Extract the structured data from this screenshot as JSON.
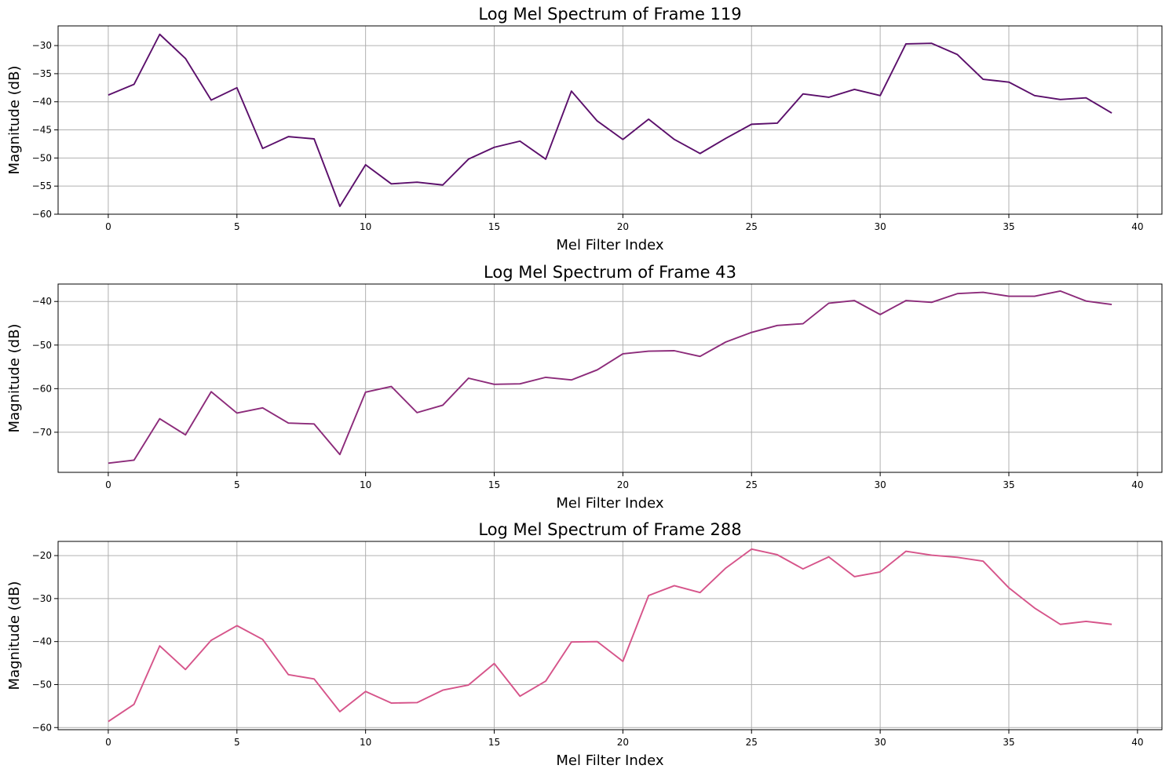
{
  "chart_data": [
    {
      "type": "line",
      "title": "Log Mel Spectrum of Frame 119",
      "xlabel": "Mel Filter Index",
      "ylabel": "Magnitude (dB)",
      "xlim": [
        -1.95,
        40.95
      ],
      "ylim": [
        -60,
        -26.5
      ],
      "xticks": [
        0,
        5,
        10,
        15,
        20,
        25,
        30,
        35,
        40
      ],
      "yticks": [
        -60,
        -55,
        -50,
        -45,
        -40,
        -35,
        -30
      ],
      "grid": true,
      "color": "#5b0f6b",
      "series": [
        {
          "x": [
            0,
            1,
            2,
            3,
            4,
            5,
            6,
            7,
            8,
            9,
            10,
            11,
            12,
            13,
            14,
            15,
            16,
            17,
            18,
            19,
            20,
            21,
            22,
            23,
            24,
            25,
            26,
            27,
            28,
            29,
            30,
            31,
            32,
            33,
            34,
            35,
            36,
            37,
            38,
            39
          ],
          "values": [
            -38.8,
            -36.9,
            -28.0,
            -32.3,
            -39.7,
            -37.5,
            -48.3,
            -46.2,
            -46.6,
            -58.6,
            -51.2,
            -54.6,
            -54.3,
            -54.8,
            -50.2,
            -48.1,
            -47.0,
            -50.2,
            -38.1,
            -43.4,
            -46.7,
            -43.1,
            -46.7,
            -49.2,
            -46.5,
            -44.0,
            -43.8,
            -38.6,
            -39.2,
            -37.8,
            -38.9,
            -29.7,
            -29.6,
            -31.6,
            -36.0,
            -36.5,
            -38.9,
            -39.6,
            -39.3,
            -42.0
          ]
        }
      ]
    },
    {
      "type": "line",
      "title": "Log Mel Spectrum of Frame 43",
      "xlabel": "Mel Filter Index",
      "ylabel": "Magnitude (dB)",
      "xlim": [
        -1.95,
        40.95
      ],
      "ylim": [
        -79.2,
        -36.0
      ],
      "xticks": [
        0,
        5,
        10,
        15,
        20,
        25,
        30,
        35,
        40
      ],
      "yticks": [
        -70,
        -60,
        -50,
        -40
      ],
      "grid": true,
      "color": "#8c2b7a",
      "series": [
        {
          "x": [
            0,
            1,
            2,
            3,
            4,
            5,
            6,
            7,
            8,
            9,
            10,
            11,
            12,
            13,
            14,
            15,
            16,
            17,
            18,
            19,
            20,
            21,
            22,
            23,
            24,
            25,
            26,
            27,
            28,
            29,
            30,
            31,
            32,
            33,
            34,
            35,
            36,
            37,
            38,
            39
          ],
          "values": [
            -77.1,
            -76.4,
            -66.9,
            -70.6,
            -60.7,
            -65.6,
            -64.4,
            -67.9,
            -68.1,
            -75.1,
            -60.8,
            -59.5,
            -65.5,
            -63.8,
            -57.6,
            -59.0,
            -58.9,
            -57.4,
            -58.0,
            -55.7,
            -52.0,
            -51.4,
            -51.3,
            -52.6,
            -49.3,
            -47.1,
            -45.5,
            -45.1,
            -40.4,
            -39.8,
            -43.0,
            -39.8,
            -40.2,
            -38.2,
            -37.9,
            -38.8,
            -38.8,
            -37.6,
            -39.9,
            -40.7
          ]
        }
      ]
    },
    {
      "type": "line",
      "title": "Log Mel Spectrum of Frame 288",
      "xlabel": "Mel Filter Index",
      "ylabel": "Magnitude (dB)",
      "xlim": [
        -1.95,
        40.95
      ],
      "ylim": [
        -60.5,
        -16.7
      ],
      "xticks": [
        0,
        5,
        10,
        15,
        20,
        25,
        30,
        35,
        40
      ],
      "yticks": [
        -60,
        -50,
        -40,
        -30,
        -20
      ],
      "grid": true,
      "color": "#d6548a",
      "series": [
        {
          "x": [
            0,
            1,
            2,
            3,
            4,
            5,
            6,
            7,
            8,
            9,
            10,
            11,
            12,
            13,
            14,
            15,
            16,
            17,
            18,
            19,
            20,
            21,
            22,
            23,
            24,
            25,
            26,
            27,
            28,
            29,
            30,
            31,
            32,
            33,
            34,
            35,
            36,
            37,
            38,
            39
          ],
          "values": [
            -58.6,
            -54.6,
            -41.0,
            -46.5,
            -39.7,
            -36.3,
            -39.5,
            -47.7,
            -48.7,
            -56.3,
            -51.6,
            -54.3,
            -54.2,
            -51.3,
            -50.1,
            -45.1,
            -52.7,
            -49.2,
            -40.1,
            -40.0,
            -44.6,
            -29.3,
            -27.0,
            -28.6,
            -22.9,
            -18.5,
            -19.8,
            -23.1,
            -20.3,
            -24.9,
            -23.8,
            -19.0,
            -19.9,
            -20.4,
            -21.3,
            -27.5,
            -32.2,
            -36.0,
            -35.3,
            -36.0
          ]
        }
      ]
    }
  ]
}
